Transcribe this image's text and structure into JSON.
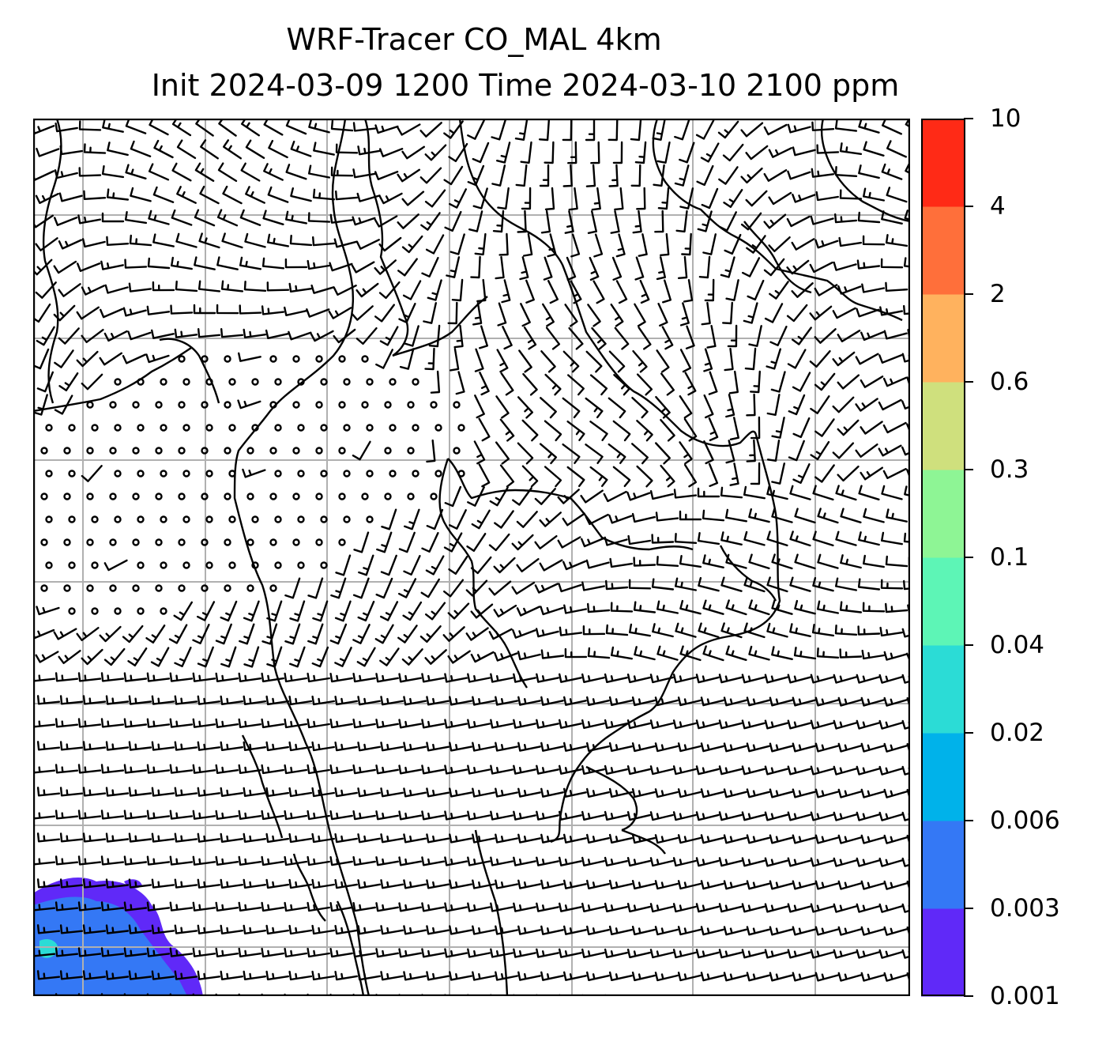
{
  "title": {
    "line1": "WRF-Tracer CO_MAL 4km",
    "line2": "Init 2024-03-09 1200 Time 2024-03-10 2100 ppm"
  },
  "colorbar": {
    "levels": [
      "0.001",
      "0.003",
      "0.006",
      "0.02",
      "0.04",
      "0.1",
      "0.3",
      "0.6",
      "2",
      "4",
      "10"
    ],
    "colors": [
      "#6029f8",
      "#3478f5",
      "#00b2ea",
      "#2bdcd6",
      "#5df5b6",
      "#8ef595",
      "#cfe07d",
      "#ffb25e",
      "#ff6f3a",
      "#ff2a16"
    ]
  },
  "map": {
    "gridlines": "on",
    "gridline_color": "#b0b0b0",
    "barb_color": "#000000",
    "tracer_plume_location": "bottom-left",
    "tracer_plume_colors": [
      "#6029f8",
      "#3478f5",
      "#2bdcd6"
    ]
  }
}
